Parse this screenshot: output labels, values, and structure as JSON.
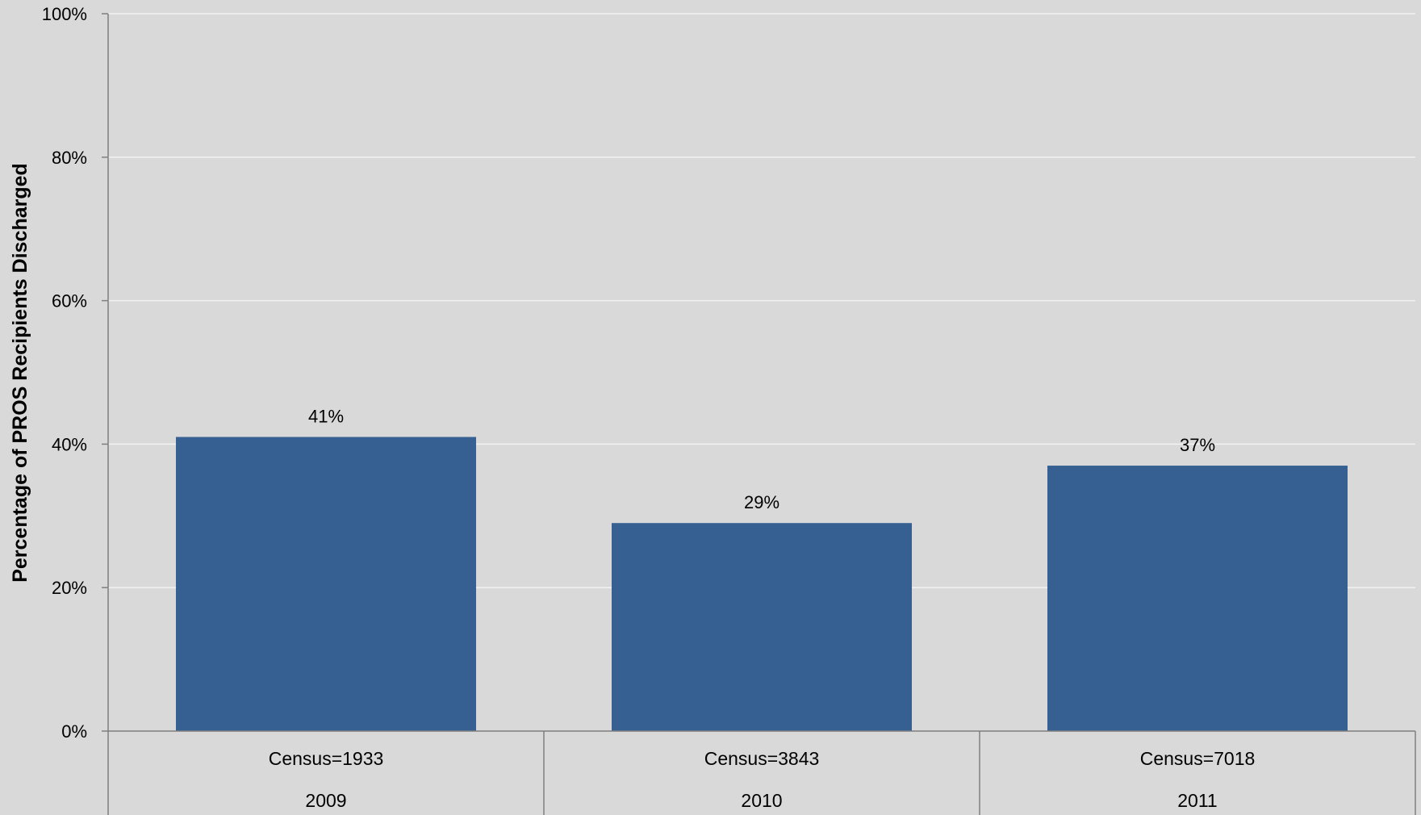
{
  "chart_data": {
    "type": "bar",
    "title": "",
    "xlabel": "",
    "ylabel": "Percentage of PROS Recipients Discharged",
    "ylim": [
      0,
      100
    ],
    "yticks": [
      0,
      20,
      40,
      60,
      80,
      100
    ],
    "ytick_labels": [
      "0%",
      "20%",
      "40%",
      "60%",
      "80%",
      "100%"
    ],
    "grid": true,
    "legend": "none",
    "categories": [
      "2009",
      "2010",
      "2011"
    ],
    "subcategories": [
      "Census=1933",
      "Census=3843",
      "Census=7018"
    ],
    "values": [
      41,
      29,
      37
    ],
    "data_labels": [
      "41%",
      "29%",
      "37%"
    ],
    "colors": {
      "background": "#d9d9d9",
      "bar": "#376092",
      "gridline": "#f2f2f2",
      "axis": "#7f7f7f"
    }
  }
}
